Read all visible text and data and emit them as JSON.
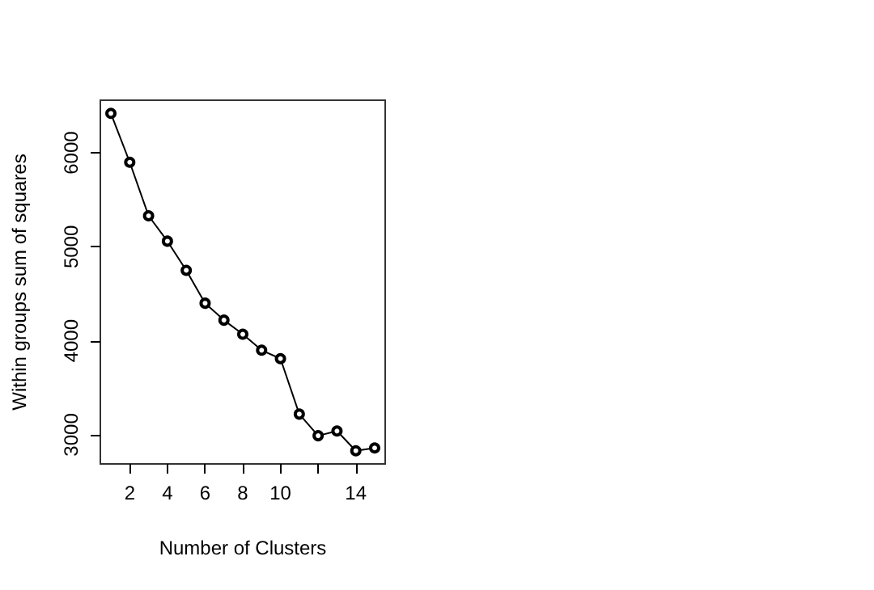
{
  "chart_data": {
    "type": "line",
    "xlabel": "Number of Clusters",
    "ylabel": "Within groups sum of squares",
    "x": [
      1,
      2,
      3,
      4,
      5,
      6,
      7,
      8,
      9,
      10,
      11,
      12,
      13,
      14,
      15
    ],
    "series": [
      {
        "color": "#000000",
        "values": [
          6420,
          5900,
          5330,
          5060,
          4750,
          4400,
          4220,
          4070,
          3900,
          3810,
          3220,
          2990,
          3040,
          2830,
          2860
        ]
      }
    ],
    "xlim": [
      0.44,
      15.56
    ],
    "xticks": [
      2,
      4,
      6,
      8,
      10,
      {
        "value": 12,
        "label": null
      },
      14
    ],
    "ylim": [
      2690,
      6560
    ],
    "yticks": [
      3000,
      4000,
      5000,
      6000
    ],
    "grid": false,
    "marker": "circle",
    "line_style": "solid"
  }
}
